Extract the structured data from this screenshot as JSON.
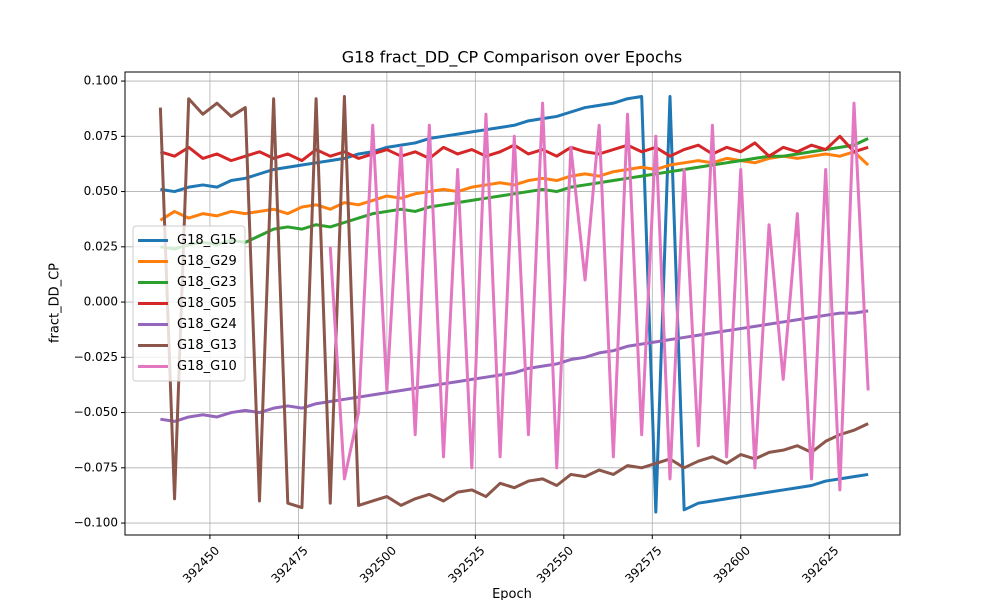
{
  "chart_data": {
    "type": "line",
    "title": "G18 fract_DD_CP Comparison over Epochs",
    "x_label": "Epoch",
    "y_label": "fract_DD_CP",
    "xlim": [
      392426,
      392645
    ],
    "ylim": [
      -0.1054,
      0.1041
    ],
    "xticks": [
      392450,
      392475,
      392500,
      392525,
      392550,
      392575,
      392600,
      392625
    ],
    "yticks": [
      {
        "value": -0.1,
        "label": "−0.100"
      },
      {
        "value": -0.075,
        "label": "−0.075"
      },
      {
        "value": -0.05,
        "label": "−0.050"
      },
      {
        "value": -0.025,
        "label": "−0.025"
      },
      {
        "value": 0,
        "label": "0.000"
      },
      0.025,
      {
        "value": 0.05,
        "label": "0.050"
      },
      0.075,
      {
        "value": 0.1,
        "label": "0.100"
      }
    ],
    "grid": true,
    "legend": "center left",
    "x": [
      392436,
      392440,
      392444,
      392448,
      392452,
      392456,
      392460,
      392464,
      392468,
      392472,
      392476,
      392480,
      392484,
      392488,
      392492,
      392496,
      392500,
      392504,
      392508,
      392512,
      392516,
      392520,
      392524,
      392528,
      392532,
      392536,
      392540,
      392544,
      392548,
      392552,
      392556,
      392560,
      392564,
      392568,
      392572,
      392576,
      392580,
      392584,
      392588,
      392592,
      392596,
      392600,
      392604,
      392608,
      392612,
      392616,
      392620,
      392624,
      392628,
      392632,
      392636
    ],
    "series": [
      {
        "name": "G18_G15",
        "color": "#1f77b4",
        "values": [
          0.051,
          0.05,
          0.052,
          0.053,
          0.052,
          0.055,
          0.056,
          0.058,
          0.06,
          0.061,
          0.062,
          0.063,
          0.064,
          0.065,
          0.067,
          0.068,
          0.07,
          0.071,
          0.072,
          0.074,
          0.075,
          0.076,
          0.077,
          0.078,
          0.079,
          0.08,
          0.082,
          0.083,
          0.084,
          0.086,
          0.088,
          0.089,
          0.09,
          0.092,
          0.093,
          -0.095,
          0.093,
          -0.094,
          -0.091,
          -0.09,
          -0.089,
          -0.088,
          -0.087,
          -0.086,
          -0.085,
          -0.084,
          -0.083,
          -0.081,
          -0.08,
          -0.079,
          -0.078
        ]
      },
      {
        "name": "G18_G29",
        "color": "#ff7f0e",
        "values": [
          0.037,
          0.041,
          0.038,
          0.04,
          0.039,
          0.041,
          0.04,
          0.041,
          0.042,
          0.04,
          0.043,
          0.044,
          0.042,
          0.045,
          0.044,
          0.046,
          0.048,
          0.047,
          0.049,
          0.05,
          0.051,
          0.05,
          0.052,
          0.053,
          0.054,
          0.053,
          0.055,
          0.056,
          0.055,
          0.057,
          0.058,
          0.057,
          0.059,
          0.06,
          0.061,
          0.06,
          0.062,
          0.063,
          0.064,
          0.063,
          0.065,
          0.064,
          0.063,
          0.065,
          0.066,
          0.065,
          0.066,
          0.067,
          0.066,
          0.068,
          0.062
        ]
      },
      {
        "name": "G18_G23",
        "color": "#2ca02c",
        "values": [
          0.025,
          0.024,
          0.026,
          0.027,
          0.026,
          0.028,
          0.027,
          0.03,
          0.033,
          0.034,
          0.033,
          0.035,
          0.034,
          0.036,
          0.038,
          0.04,
          0.041,
          0.042,
          0.041,
          0.043,
          0.044,
          0.045,
          0.046,
          0.047,
          0.048,
          0.049,
          0.05,
          0.051,
          0.05,
          0.052,
          0.053,
          0.054,
          0.055,
          0.056,
          0.057,
          0.058,
          0.059,
          0.06,
          0.061,
          0.062,
          0.063,
          0.064,
          0.065,
          0.066,
          0.066,
          0.067,
          0.068,
          0.069,
          0.07,
          0.071,
          0.074
        ]
      },
      {
        "name": "G18_G05",
        "color": "#d62728",
        "values": [
          0.068,
          0.066,
          0.07,
          0.065,
          0.067,
          0.064,
          0.066,
          0.068,
          0.065,
          0.067,
          0.064,
          0.069,
          0.066,
          0.068,
          0.065,
          0.067,
          0.069,
          0.066,
          0.068,
          0.065,
          0.07,
          0.067,
          0.069,
          0.066,
          0.068,
          0.071,
          0.067,
          0.069,
          0.066,
          0.07,
          0.068,
          0.067,
          0.069,
          0.071,
          0.068,
          0.07,
          0.066,
          0.069,
          0.071,
          0.067,
          0.07,
          0.068,
          0.072,
          0.066,
          0.07,
          0.068,
          0.071,
          0.069,
          0.075,
          0.068,
          0.07
        ]
      },
      {
        "name": "G18_G24",
        "color": "#9467bd",
        "values": [
          -0.053,
          -0.054,
          -0.052,
          -0.051,
          -0.052,
          -0.05,
          -0.049,
          -0.05,
          -0.048,
          -0.047,
          -0.048,
          -0.046,
          -0.045,
          -0.044,
          -0.043,
          -0.042,
          -0.041,
          -0.04,
          -0.039,
          -0.038,
          -0.037,
          -0.036,
          -0.035,
          -0.034,
          -0.033,
          -0.032,
          -0.03,
          -0.029,
          -0.028,
          -0.026,
          -0.025,
          -0.023,
          -0.022,
          -0.02,
          -0.019,
          -0.018,
          -0.017,
          -0.016,
          -0.015,
          -0.014,
          -0.013,
          -0.012,
          -0.011,
          -0.01,
          -0.009,
          -0.008,
          -0.007,
          -0.006,
          -0.005,
          -0.005,
          -0.004
        ]
      },
      {
        "name": "G18_G13",
        "color": "#8c564b",
        "values": [
          0.088,
          -0.089,
          0.092,
          0.085,
          0.09,
          0.084,
          0.088,
          -0.09,
          0.092,
          -0.091,
          -0.093,
          0.092,
          -0.091,
          0.093,
          -0.092,
          -0.09,
          -0.088,
          -0.092,
          -0.089,
          -0.087,
          -0.09,
          -0.086,
          -0.085,
          -0.088,
          -0.082,
          -0.084,
          -0.081,
          -0.08,
          -0.083,
          -0.078,
          -0.079,
          -0.076,
          -0.078,
          -0.074,
          -0.075,
          -0.073,
          -0.071,
          -0.075,
          -0.072,
          -0.07,
          -0.073,
          -0.069,
          -0.071,
          -0.068,
          -0.067,
          -0.065,
          -0.068,
          -0.063,
          -0.06,
          -0.058,
          -0.055
        ]
      },
      {
        "name": "G18_G10",
        "color": "#e377c2",
        "values": [
          null,
          null,
          null,
          null,
          null,
          null,
          null,
          null,
          null,
          null,
          null,
          null,
          0.025,
          -0.08,
          -0.05,
          0.08,
          -0.04,
          0.07,
          -0.06,
          0.08,
          -0.07,
          0.06,
          -0.075,
          0.085,
          -0.07,
          0.075,
          -0.06,
          0.09,
          -0.075,
          0.07,
          0.01,
          0.08,
          -0.07,
          0.085,
          -0.06,
          0.075,
          -0.08,
          0.06,
          -0.065,
          0.08,
          -0.07,
          0.06,
          -0.075,
          0.035,
          -0.035,
          0.04,
          -0.08,
          0.06,
          -0.085,
          0.09,
          -0.04
        ]
      }
    ]
  }
}
